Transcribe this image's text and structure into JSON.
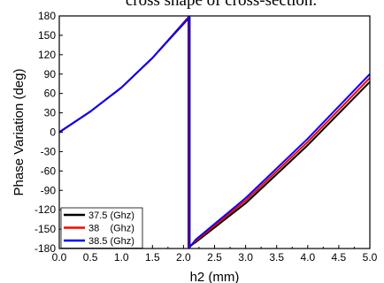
{
  "caption": "cross shape of cross-section.",
  "chart_data": {
    "type": "line",
    "xlabel": "h2 (mm)",
    "ylabel": "Phase Variation (deg)",
    "xlim": [
      0,
      5
    ],
    "ylim": [
      -180,
      180
    ],
    "xticks": [
      "0.0",
      "0.5",
      "1.0",
      "1.5",
      "2.0",
      "2.5",
      "3.0",
      "3.5",
      "4.0",
      "4.5",
      "5.0"
    ],
    "yticks": [
      "180",
      "150",
      "120",
      "90",
      "60",
      "30",
      "0",
      "-30",
      "-60",
      "-90",
      "-120",
      "-150",
      "-180"
    ],
    "grid": false,
    "legend_position": "bottom-left",
    "series": [
      {
        "name": "37.5 (Ghz)",
        "color": "#000000",
        "points": [
          [
            0,
            0
          ],
          [
            0.5,
            32
          ],
          [
            1.0,
            69
          ],
          [
            1.5,
            115
          ],
          [
            2.08,
            178
          ],
          [
            2.08,
            -178
          ],
          [
            2.2,
            -170
          ],
          [
            3.0,
            -110
          ],
          [
            4.0,
            -20
          ],
          [
            5.0,
            78
          ]
        ]
      },
      {
        "name": "38    (Ghz)",
        "color": "#ff0000",
        "points": [
          [
            0,
            0
          ],
          [
            0.5,
            32
          ],
          [
            1.0,
            69
          ],
          [
            1.5,
            115
          ],
          [
            2.09,
            178
          ],
          [
            2.09,
            -178
          ],
          [
            2.2,
            -168
          ],
          [
            3.0,
            -106
          ],
          [
            4.0,
            -15
          ],
          [
            5.0,
            84
          ]
        ]
      },
      {
        "name": "38.5 (Ghz)",
        "color": "#0000ff",
        "points": [
          [
            0,
            0
          ],
          [
            0.5,
            32
          ],
          [
            1.0,
            69
          ],
          [
            1.5,
            115
          ],
          [
            2.1,
            178
          ],
          [
            2.1,
            -178
          ],
          [
            2.2,
            -166
          ],
          [
            3.0,
            -102
          ],
          [
            4.0,
            -10
          ],
          [
            5.0,
            90
          ]
        ]
      }
    ]
  }
}
